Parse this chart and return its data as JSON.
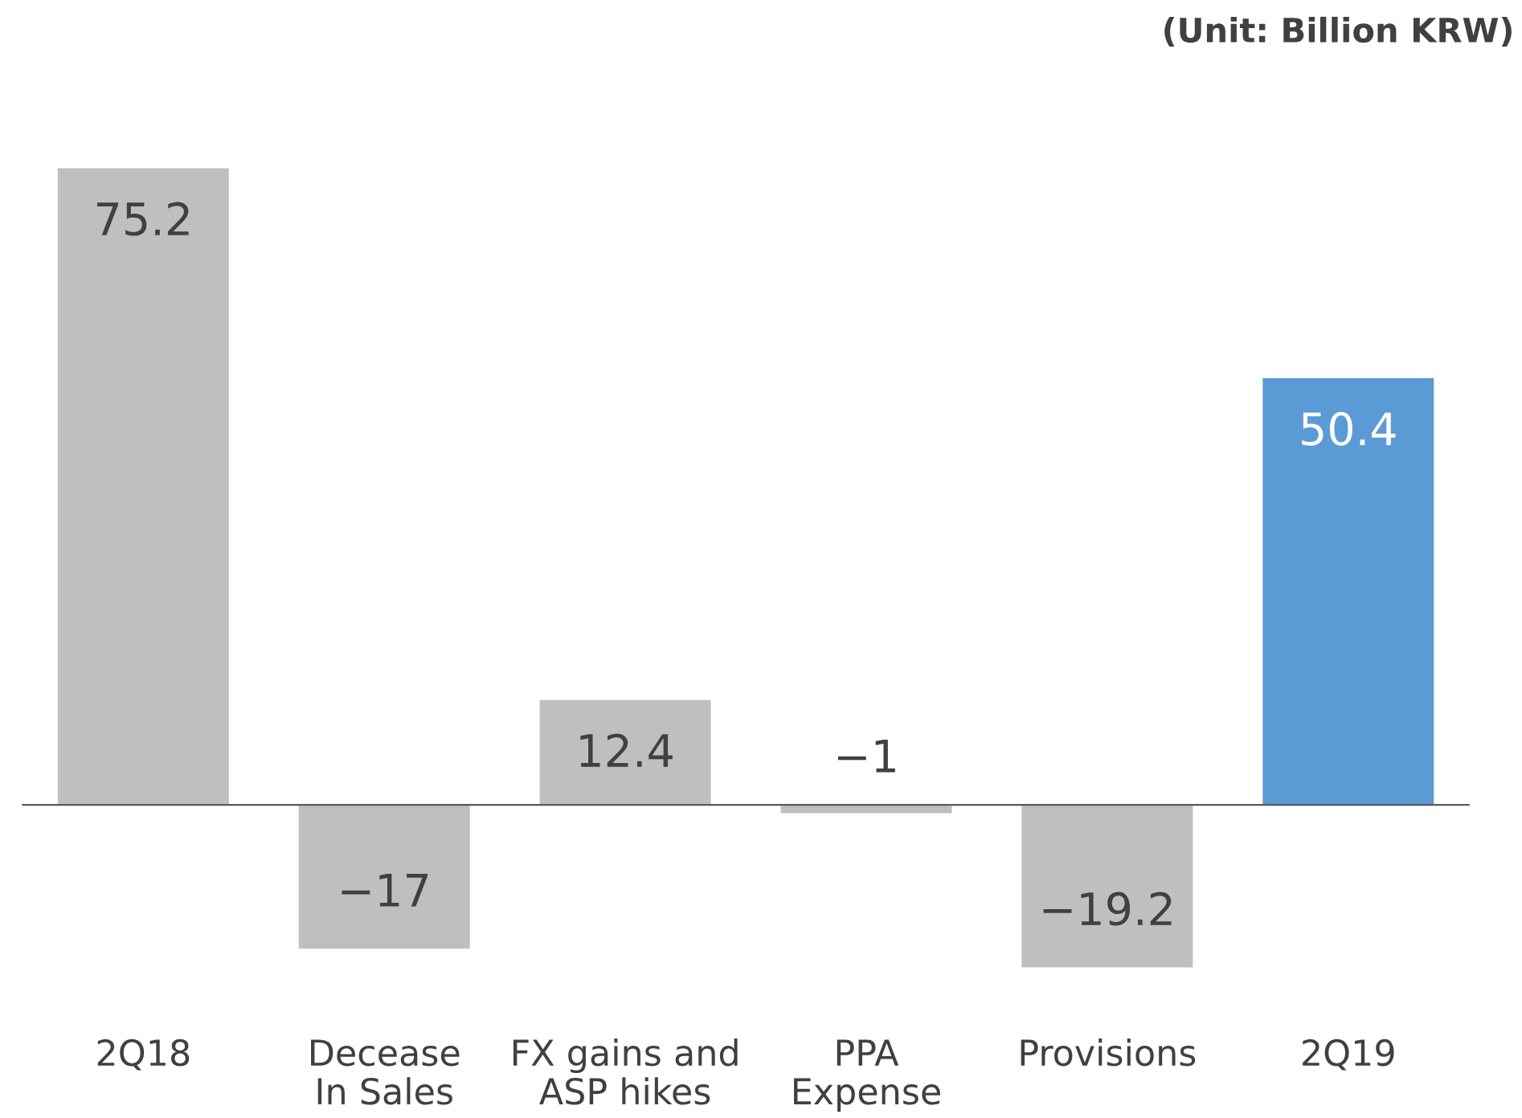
{
  "chart_data": {
    "type": "bar",
    "categories": [
      "2Q18",
      "Decease\nIn Sales",
      "FX gains and\nASP hikes",
      "PPA\nExpense",
      "Provisions",
      "2Q19"
    ],
    "values": [
      75.2,
      -17,
      12.4,
      -1,
      -19.2,
      50.4
    ],
    "colors": [
      "#bfbfbf",
      "#bfbfbf",
      "#bfbfbf",
      "#bfbfbf",
      "#bfbfbf",
      "#5b9bd5"
    ],
    "data_labels": true,
    "grid": false,
    "annotations": [
      "(Unit: Billion KRW)"
    ]
  }
}
